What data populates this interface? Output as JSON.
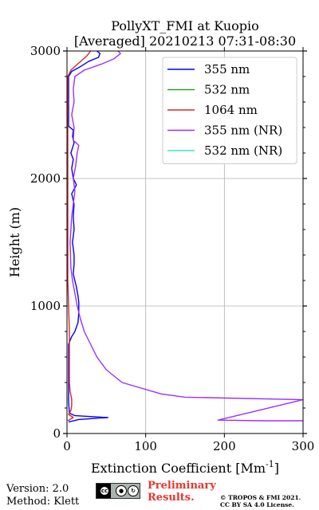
{
  "chart_data": {
    "type": "line",
    "title_line1": "PollyXT_FMI at Kuopio",
    "title_line2": "[Averaged] 20210213 07:31-08:30",
    "xlabel": "Extinction Coefficient [Mm",
    "xlabel_sup": "-1",
    "xlabel_end": "]",
    "ylabel": "Height (m)",
    "xlim": [
      0,
      300
    ],
    "ylim": [
      0,
      3000
    ],
    "xticks": [
      0,
      100,
      200,
      300
    ],
    "yticks": [
      0,
      1000,
      2000,
      3000
    ],
    "grid": true,
    "legend_position": "top-right",
    "series": [
      {
        "name": "355 nm",
        "color": "#0000ff",
        "points": [
          [
            2,
            90
          ],
          [
            15,
            110
          ],
          [
            52,
            125
          ],
          [
            10,
            140
          ],
          [
            3,
            160
          ],
          [
            2,
            250
          ],
          [
            2,
            700
          ],
          [
            6,
            760
          ],
          [
            10,
            800
          ],
          [
            14,
            870
          ],
          [
            15,
            950
          ],
          [
            15,
            1030
          ],
          [
            14,
            1080
          ],
          [
            12,
            1150
          ],
          [
            8,
            1250
          ],
          [
            9,
            1330
          ],
          [
            9,
            1400
          ],
          [
            7,
            1500
          ],
          [
            9,
            1600
          ],
          [
            8,
            1700
          ],
          [
            9,
            1800
          ],
          [
            6,
            1880
          ],
          [
            12,
            1950
          ],
          [
            8,
            2000
          ],
          [
            6,
            2080
          ],
          [
            8,
            2150
          ],
          [
            5,
            2200
          ],
          [
            9,
            2280
          ],
          [
            7,
            2330
          ],
          [
            8,
            2380
          ],
          [
            2,
            2410
          ],
          [
            2,
            2800
          ],
          [
            6,
            2840
          ],
          [
            15,
            2870
          ],
          [
            28,
            2920
          ],
          [
            40,
            2950
          ],
          [
            42,
            2980
          ],
          [
            38,
            3000
          ]
        ]
      },
      {
        "name": "532 nm",
        "color": "#2ca02c",
        "points": []
      },
      {
        "name": "1064 nm",
        "color": "#d62728",
        "points": [
          [
            1,
            100
          ],
          [
            8,
            125
          ],
          [
            2,
            150
          ],
          [
            5,
            180
          ],
          [
            6,
            220
          ],
          [
            6,
            270
          ],
          [
            4,
            330
          ],
          [
            3,
            400
          ],
          [
            3,
            600
          ],
          [
            3,
            800
          ],
          [
            2,
            1000
          ],
          [
            1,
            1200
          ],
          [
            1,
            2800
          ],
          [
            5,
            2850
          ],
          [
            14,
            2900
          ],
          [
            25,
            2960
          ],
          [
            30,
            3000
          ]
        ]
      },
      {
        "name": "355 nm (NR)",
        "color": "#9b30ff",
        "points": [
          [
            300,
            100
          ],
          [
            250,
            100
          ],
          [
            192,
            105
          ],
          [
            300,
            265
          ],
          [
            150,
            285
          ],
          [
            120,
            310
          ],
          [
            70,
            400
          ],
          [
            50,
            500
          ],
          [
            38,
            600
          ],
          [
            30,
            700
          ],
          [
            22,
            800
          ],
          [
            17,
            900
          ],
          [
            13,
            1000
          ],
          [
            10,
            1100
          ],
          [
            7,
            1200
          ],
          [
            5,
            1300
          ],
          [
            4,
            1500
          ],
          [
            6,
            1700
          ],
          [
            10,
            1900
          ],
          [
            8,
            2000
          ],
          [
            11,
            2100
          ],
          [
            13,
            2200
          ],
          [
            15,
            2260
          ],
          [
            8,
            2300
          ],
          [
            9,
            2400
          ],
          [
            6,
            2500
          ],
          [
            9,
            2600
          ],
          [
            8,
            2700
          ],
          [
            10,
            2800
          ],
          [
            22,
            2850
          ],
          [
            45,
            2900
          ],
          [
            60,
            2940
          ],
          [
            68,
            2980
          ],
          [
            65,
            3000
          ]
        ]
      },
      {
        "name": "532 nm (NR)",
        "color": "#40e0d0",
        "points": []
      }
    ]
  },
  "footer": {
    "version": "Version: 2.0",
    "method": "Method: Klett",
    "cc_badge_icons": [
      "cc-icon",
      "by-icon",
      "sa-icon"
    ],
    "cc_label": "cc",
    "preliminary_line1": "Preliminary",
    "preliminary_line2": "Results.",
    "copyright_line1": "© TROPOS & FMI 2021.",
    "copyright_line2": "CC BY SA 4.0 License."
  }
}
